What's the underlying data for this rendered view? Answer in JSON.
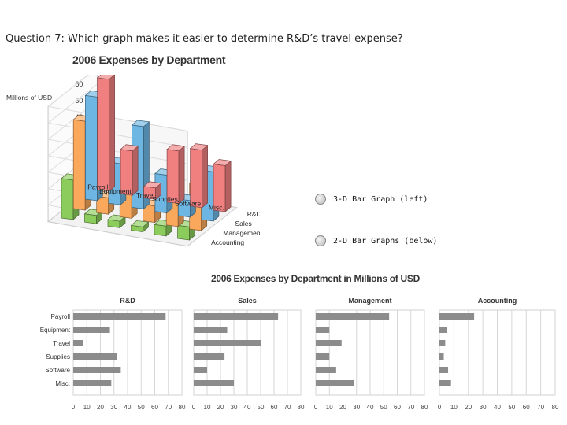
{
  "question": {
    "text": "Question 7: Which graph makes it easier to determine R&D’s travel expense?"
  },
  "options": [
    {
      "label": "3-D Bar Graph (left)"
    },
    {
      "label": "2-D Bar Graphs (below)"
    }
  ],
  "colors": {
    "R&D": "#f08080",
    "Sales": "#6db5e2",
    "Management": "#f9a85c",
    "Accounting": "#8ccc5c",
    "bar2d": "#8c8c8c",
    "grid": "#d6d6d6"
  },
  "chart_data": [
    {
      "type": "bar",
      "style": "3d",
      "title": "2006 Expenses by Department",
      "ylabel": "Millions of USD",
      "ylim": [
        0,
        70
      ],
      "yticks": [
        0,
        10,
        20,
        30,
        40,
        50,
        60,
        70
      ],
      "categories": [
        "Payroll",
        "Equipment",
        "Travel",
        "Supplies",
        "Software",
        "Misc."
      ],
      "series": [
        {
          "name": "R&D",
          "values": [
            68,
            27,
            7,
            32,
            35,
            28
          ]
        },
        {
          "name": "Sales",
          "values": [
            63,
            25,
            50,
            23,
            10,
            30
          ]
        },
        {
          "name": "Management",
          "values": [
            54,
            10,
            19,
            10,
            15,
            28
          ]
        },
        {
          "name": "Accounting",
          "values": [
            24,
            5,
            4,
            3,
            6,
            8
          ]
        }
      ]
    },
    {
      "type": "bar",
      "style": "2d-small-multiples",
      "title": "2006 Expenses by Department in Millions of USD",
      "categories": [
        "Payroll",
        "Equipment",
        "Travel",
        "Supplies",
        "Software",
        "Misc."
      ],
      "xlim": [
        0,
        80
      ],
      "xticks": [
        0,
        10,
        20,
        30,
        40,
        50,
        60,
        70,
        80
      ],
      "panels": [
        {
          "name": "R&D",
          "values": [
            68,
            27,
            7,
            32,
            35,
            28
          ]
        },
        {
          "name": "Sales",
          "values": [
            63,
            25,
            50,
            23,
            10,
            30
          ]
        },
        {
          "name": "Management",
          "values": [
            54,
            10,
            19,
            10,
            15,
            28
          ]
        },
        {
          "name": "Accounting",
          "values": [
            24,
            5,
            4,
            3,
            6,
            8
          ]
        }
      ]
    }
  ]
}
